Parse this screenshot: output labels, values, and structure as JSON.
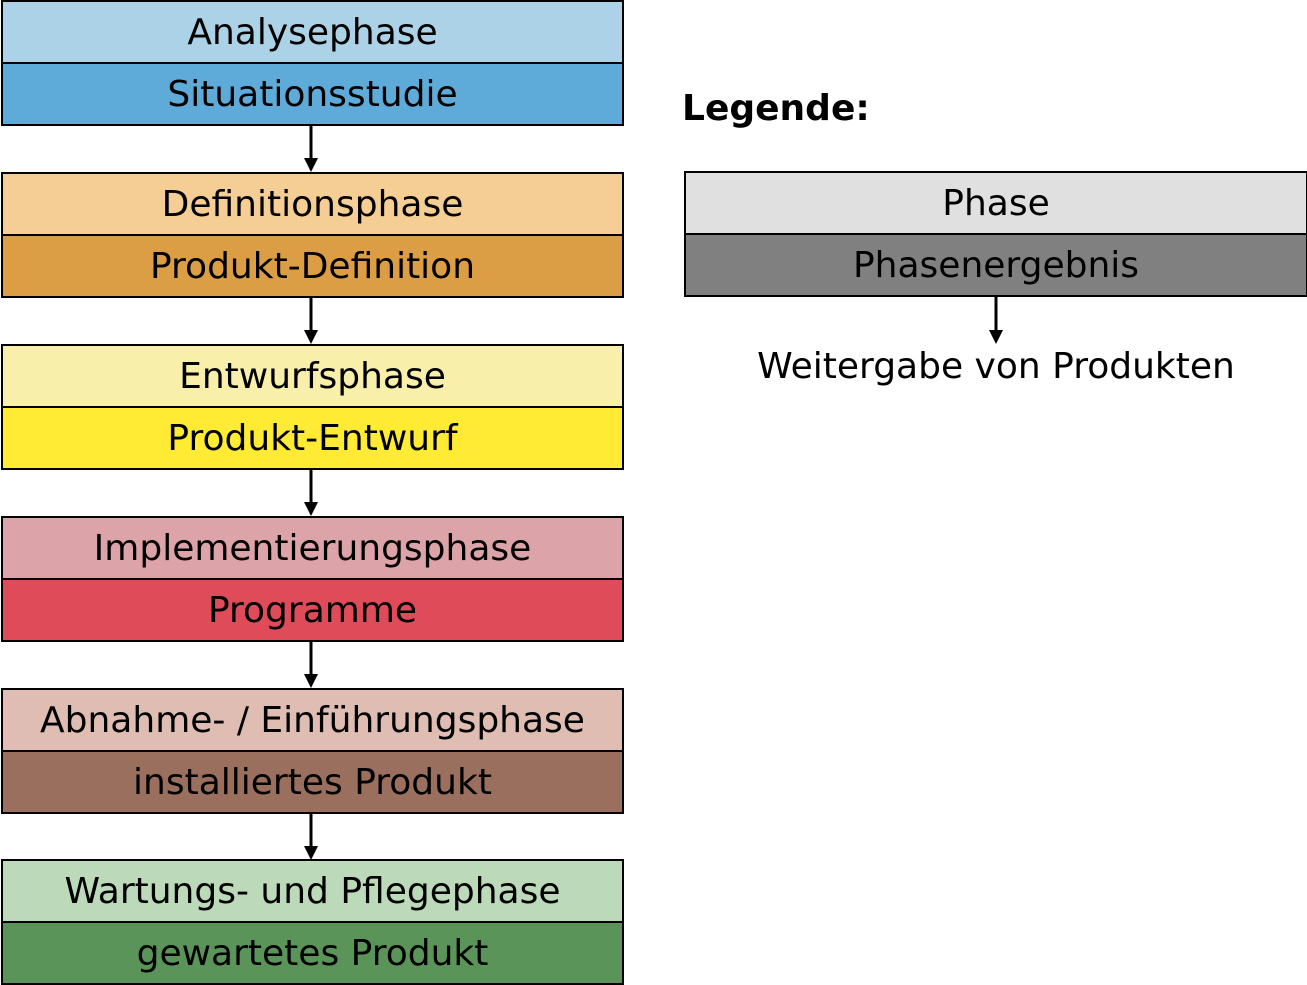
{
  "phases": [
    {
      "phase": "Analysephase",
      "result": "Situationsstudie",
      "phase_color": "#acd2e7",
      "result_color": "#5eabd9"
    },
    {
      "phase": "Definitionsphase",
      "result": "Produkt-Definition",
      "phase_color": "#f5ce96",
      "result_color": "#dc9e44"
    },
    {
      "phase": "Entwurfsphase",
      "result": "Produkt-Entwurf",
      "phase_color": "#f7efaa",
      "result_color": "#ffeb33"
    },
    {
      "phase": "Implementierungsphase",
      "result": "Programme",
      "phase_color": "#dca3a9",
      "result_color": "#e04b59"
    },
    {
      "phase": "Abnahme- / Einführungsphase",
      "result": "installiertes Produkt",
      "phase_color": "#dfbdb2",
      "result_color": "#9a6f5e"
    },
    {
      "phase": "Wartungs- und Pflegephase",
      "result": "gewartetes Produkt",
      "phase_color": "#bcd9ba",
      "result_color": "#5b9458"
    }
  ],
  "legend": {
    "title": "Legende:",
    "phase_label": "Phase",
    "result_label": "Phasenergebnis",
    "arrow_label": "Weitergabe von Produkten",
    "phase_color": "#e0e0e0",
    "result_color": "#808080"
  }
}
